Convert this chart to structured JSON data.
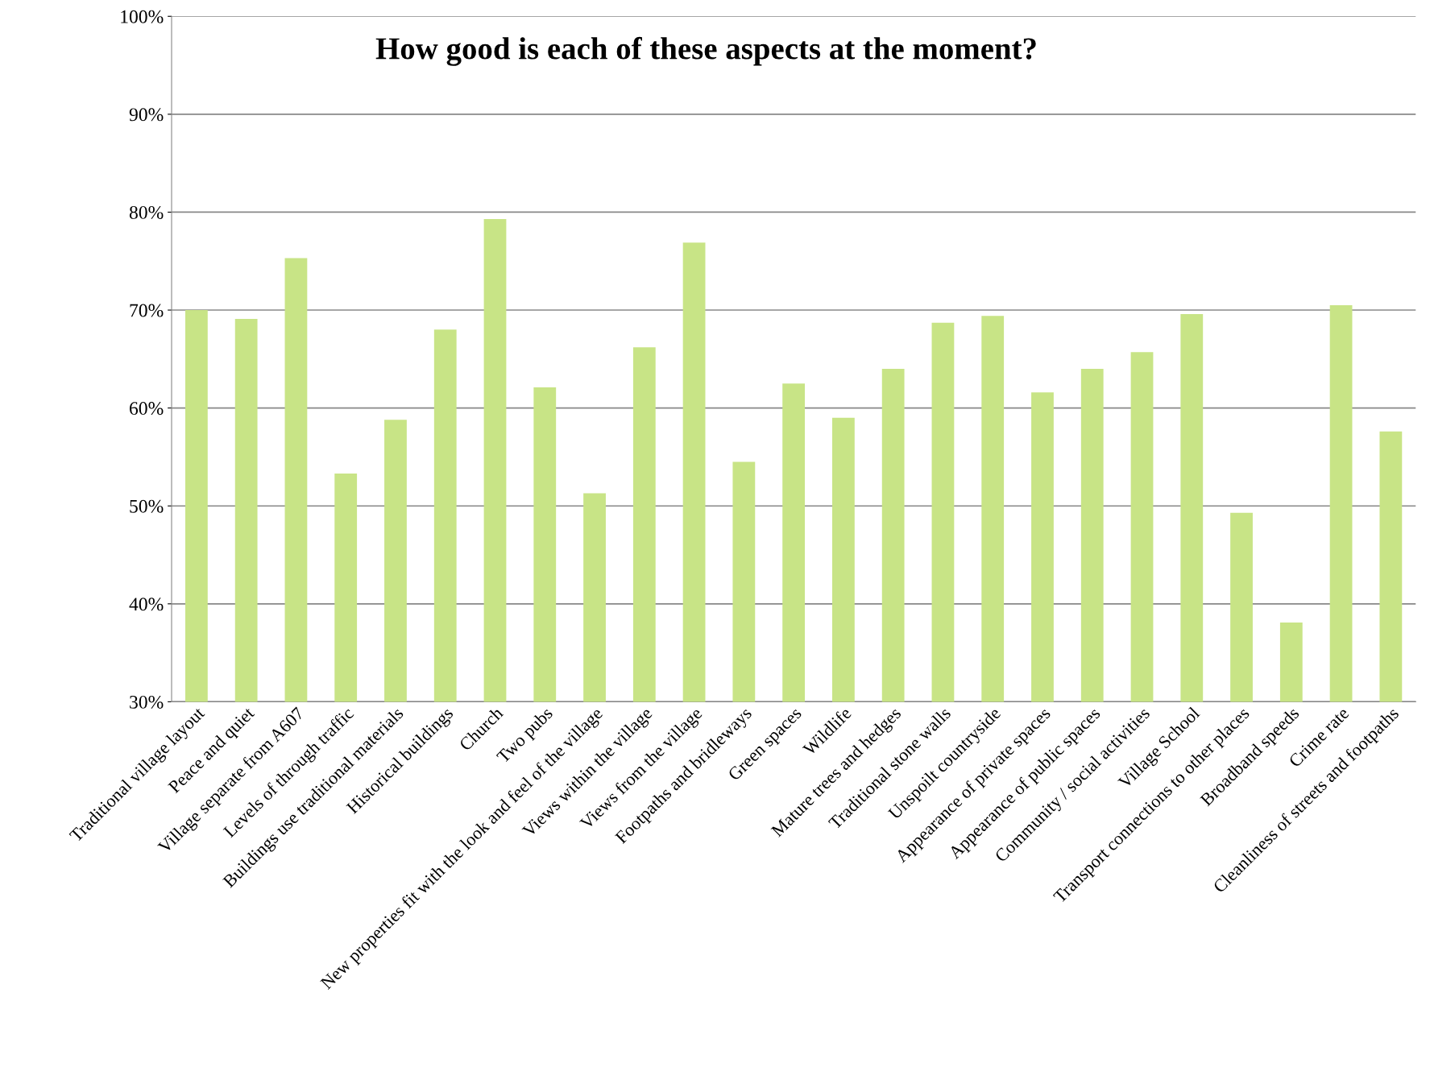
{
  "chart_data": {
    "type": "bar",
    "title": "How good is each of these aspects at the moment?",
    "categories": [
      "Traditional village layout",
      "Peace and quiet",
      "Village separate from A607",
      "Levels of through traffic",
      "Buildings use traditional materials",
      "Historical buildings",
      "Church",
      "Two pubs",
      "New properties fit with the look and feel of the village",
      "Views within the village",
      "Views from the village",
      "Footpaths and bridleways",
      "Green spaces",
      "Wildlife",
      "Mature trees and hedges",
      "Traditional stone walls",
      "Unspoilt countryside",
      "Appearance of private spaces",
      "Appearance of public spaces",
      "Community / social activities",
      "Village School",
      "Transport connections to other places",
      "Broadband speeds",
      "Crime rate",
      "Cleanliness of streets and footpaths"
    ],
    "values": [
      70.0,
      69.1,
      75.3,
      53.3,
      58.8,
      68.0,
      79.3,
      62.1,
      51.3,
      66.2,
      76.9,
      54.5,
      62.5,
      59.0,
      64.0,
      68.7,
      69.4,
      61.6,
      64.0,
      65.7,
      69.6,
      49.3,
      38.1,
      70.5,
      57.6
    ],
    "color": "#c8e486",
    "ylim": [
      30,
      100
    ],
    "yticks": [
      {
        "value": 30,
        "label": "30%"
      },
      {
        "value": 40,
        "label": "40%"
      },
      {
        "value": 50,
        "label": "50%"
      },
      {
        "value": 60,
        "label": "60%"
      },
      {
        "value": 70,
        "label": "70%"
      },
      {
        "value": 80,
        "label": "80%"
      },
      {
        "value": 90,
        "label": "90%"
      },
      {
        "value": 100,
        "label": "100%"
      }
    ],
    "grid": "y",
    "legend": false
  }
}
